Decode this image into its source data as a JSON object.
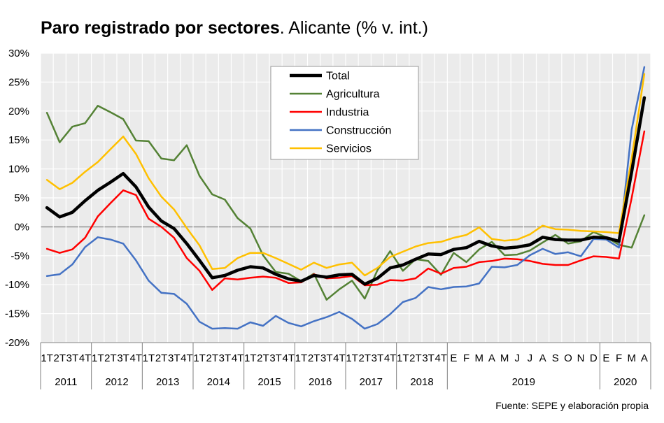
{
  "title": {
    "bold": "Paro registrado por sectores",
    "rest": ". Alicante (% v. int.)"
  },
  "source": "Fuente: SEPE y elaboración propia",
  "chart_data": {
    "type": "line",
    "title": "Paro registrado por sectores. Alicante (% v. int.)",
    "ylim": [
      -20,
      30
    ],
    "yticks": [
      -20,
      -15,
      -10,
      -5,
      0,
      5,
      10,
      15,
      20,
      25,
      30
    ],
    "ytick_labels": [
      "-20%",
      "-15%",
      "-10%",
      "-5%",
      "0%",
      "5%",
      "10%",
      "15%",
      "20%",
      "25%",
      "30%"
    ],
    "grid": true,
    "legend_position": "top-center",
    "categories": [
      "1T",
      "2T",
      "3T",
      "4T",
      "1T",
      "2T",
      "3T",
      "4T",
      "1T",
      "2T",
      "3T",
      "4T",
      "1T",
      "2T",
      "3T",
      "4T",
      "1T",
      "2T",
      "3T",
      "4T",
      "1T",
      "2T",
      "3T",
      "4T",
      "1T",
      "2T",
      "3T",
      "4T",
      "1T",
      "2T",
      "3T",
      "4T",
      "E",
      "F",
      "M",
      "A",
      "M",
      "J",
      "J",
      "A",
      "S",
      "O",
      "N",
      "D",
      "E",
      "F",
      "M",
      "A"
    ],
    "groups": [
      {
        "label": "2011",
        "start": 0,
        "count": 4
      },
      {
        "label": "2012",
        "start": 4,
        "count": 4
      },
      {
        "label": "2013",
        "start": 8,
        "count": 4
      },
      {
        "label": "2014",
        "start": 12,
        "count": 4
      },
      {
        "label": "2015",
        "start": 16,
        "count": 4
      },
      {
        "label": "2016",
        "start": 20,
        "count": 4
      },
      {
        "label": "2017",
        "start": 24,
        "count": 4
      },
      {
        "label": "2018",
        "start": 28,
        "count": 4
      },
      {
        "label": "2019",
        "start": 32,
        "count": 12
      },
      {
        "label": "2020",
        "start": 44,
        "count": 4
      }
    ],
    "series": [
      {
        "name": "Total",
        "color": "#000000",
        "width": 4.5,
        "values": [
          3.3,
          1.7,
          2.5,
          4.5,
          6.3,
          7.7,
          9.2,
          6.9,
          3.4,
          1.0,
          -0.3,
          -2.9,
          -5.8,
          -8.8,
          -8.4,
          -7.5,
          -6.9,
          -7.1,
          -8.2,
          -9.0,
          -9.4,
          -8.4,
          -8.7,
          -8.3,
          -8.2,
          -9.9,
          -8.9,
          -7.1,
          -6.6,
          -5.6,
          -4.7,
          -4.8,
          -3.9,
          -3.6,
          -2.5,
          -3.3,
          -3.7,
          -3.5,
          -3.1,
          -1.8,
          -2.2,
          -2.3,
          -2.3,
          -1.8,
          -1.9,
          -2.5,
          9.5,
          22.3
        ]
      },
      {
        "name": "Agricultura",
        "color": "#548235",
        "width": 2.5,
        "values": [
          19.7,
          14.6,
          17.3,
          17.9,
          20.9,
          19.8,
          18.6,
          14.9,
          14.8,
          11.8,
          11.5,
          14.1,
          8.8,
          5.6,
          4.7,
          1.5,
          -0.3,
          -4.9,
          -7.8,
          -8.1,
          -9.4,
          -8.1,
          -12.6,
          -10.8,
          -9.3,
          -12.4,
          -7.5,
          -4.2,
          -7.6,
          -5.6,
          -5.9,
          -8.3,
          -4.5,
          -6.1,
          -3.9,
          -2.6,
          -4.9,
          -4.8,
          -4.1,
          -2.7,
          -1.4,
          -2.9,
          -2.5,
          -0.9,
          -1.8,
          -3.1,
          -3.6,
          2.0
        ]
      },
      {
        "name": "Industria",
        "color": "#ff0000",
        "width": 2.5,
        "values": [
          -3.8,
          -4.5,
          -3.9,
          -1.9,
          1.8,
          4.1,
          6.3,
          5.5,
          1.4,
          0.0,
          -1.9,
          -5.4,
          -7.6,
          -10.9,
          -8.9,
          -9.1,
          -8.8,
          -8.6,
          -8.8,
          -9.7,
          -9.6,
          -8.2,
          -8.9,
          -8.8,
          -8.5,
          -10.1,
          -10.0,
          -9.2,
          -9.3,
          -8.9,
          -7.2,
          -8.1,
          -7.1,
          -6.9,
          -6.1,
          -5.9,
          -5.5,
          -5.6,
          -5.9,
          -6.4,
          -6.6,
          -6.6,
          -5.8,
          -5.1,
          -5.2,
          -5.5,
          5.0,
          16.5
        ]
      },
      {
        "name": "Construcción",
        "color": "#4472c4",
        "width": 2.5,
        "values": [
          -8.5,
          -8.2,
          -6.5,
          -3.5,
          -1.8,
          -2.2,
          -2.9,
          -5.8,
          -9.3,
          -11.4,
          -11.6,
          -13.3,
          -16.4,
          -17.6,
          -17.5,
          -17.6,
          -16.5,
          -17.1,
          -15.4,
          -16.6,
          -17.2,
          -16.3,
          -15.6,
          -14.7,
          -15.9,
          -17.6,
          -16.8,
          -15.1,
          -13.0,
          -12.3,
          -10.4,
          -10.8,
          -10.4,
          -10.3,
          -9.8,
          -6.9,
          -7.0,
          -6.6,
          -4.9,
          -3.8,
          -4.7,
          -4.4,
          -5.1,
          -2.1,
          -2.2,
          -3.6,
          16.8,
          27.6
        ]
      },
      {
        "name": "Servicios",
        "color": "#ffc000",
        "width": 2.5,
        "values": [
          8.1,
          6.5,
          7.6,
          9.5,
          11.2,
          13.4,
          15.6,
          12.6,
          8.4,
          5.2,
          3.0,
          -0.2,
          -3.2,
          -7.3,
          -7.1,
          -5.4,
          -4.5,
          -4.5,
          -5.4,
          -6.4,
          -7.4,
          -6.2,
          -7.1,
          -6.5,
          -6.2,
          -8.4,
          -7.1,
          -5.2,
          -4.3,
          -3.4,
          -2.8,
          -2.6,
          -1.9,
          -1.4,
          -0.1,
          -2.1,
          -2.4,
          -2.2,
          -1.3,
          0.2,
          -0.4,
          -0.5,
          -0.7,
          -0.8,
          -0.9,
          -1.1,
          11.8,
          26.4
        ]
      }
    ]
  }
}
